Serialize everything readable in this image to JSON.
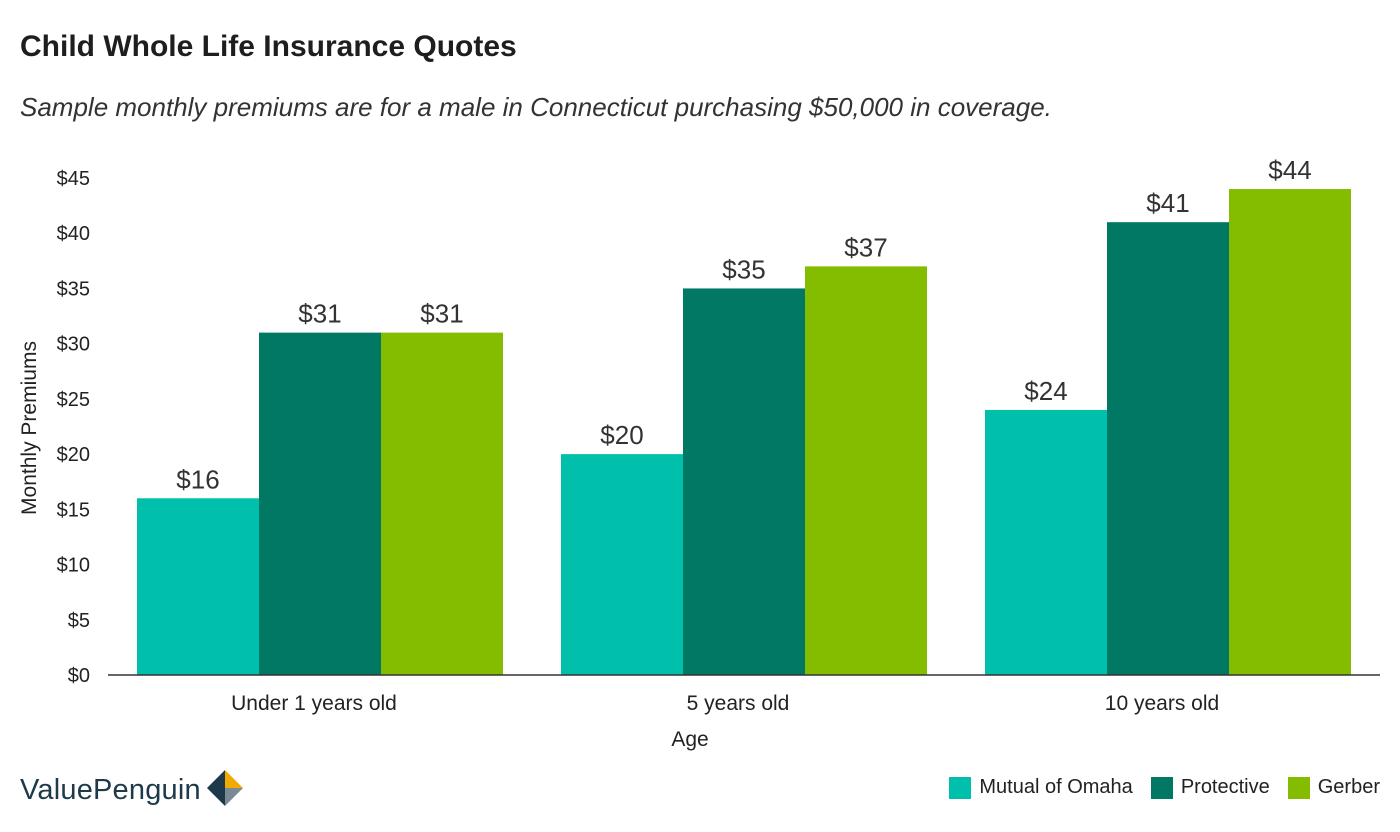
{
  "header": {
    "title": "Child Whole Life Insurance Quotes",
    "subtitle": "Sample monthly premiums are for a male in Connecticut purchasing $50,000 in coverage."
  },
  "brand": {
    "name": "ValuePenguin",
    "logo_icon": "valuepenguin-logo-icon"
  },
  "colors": {
    "mutual_of_omaha": "#00c0ac",
    "protective": "#007864",
    "gerber": "#84bd00",
    "axis": "#333333"
  },
  "chart_data": {
    "type": "bar",
    "xlabel": "Age",
    "ylabel": "Monthly Premiums",
    "ylim": [
      0,
      45
    ],
    "yticks": [
      0,
      5,
      10,
      15,
      20,
      25,
      30,
      35,
      40,
      45
    ],
    "ytick_labels": [
      "$0",
      "$5",
      "$10",
      "$15",
      "$20",
      "$25",
      "$30",
      "$35",
      "$40",
      "$45"
    ],
    "categories": [
      "Under 1 years old",
      "5 years old",
      "10 years old"
    ],
    "series": [
      {
        "name": "Mutual of Omaha",
        "color": "#00c0ac",
        "values": [
          16,
          20,
          24
        ],
        "labels": [
          "$16",
          "$20",
          "$24"
        ]
      },
      {
        "name": "Protective",
        "color": "#007864",
        "values": [
          31,
          35,
          41
        ],
        "labels": [
          "$31",
          "$35",
          "$41"
        ]
      },
      {
        "name": "Gerber",
        "color": "#84bd00",
        "values": [
          31,
          37,
          44
        ],
        "labels": [
          "$31",
          "$37",
          "$44"
        ]
      }
    ],
    "grid": false,
    "legend_position": "bottom-right"
  }
}
